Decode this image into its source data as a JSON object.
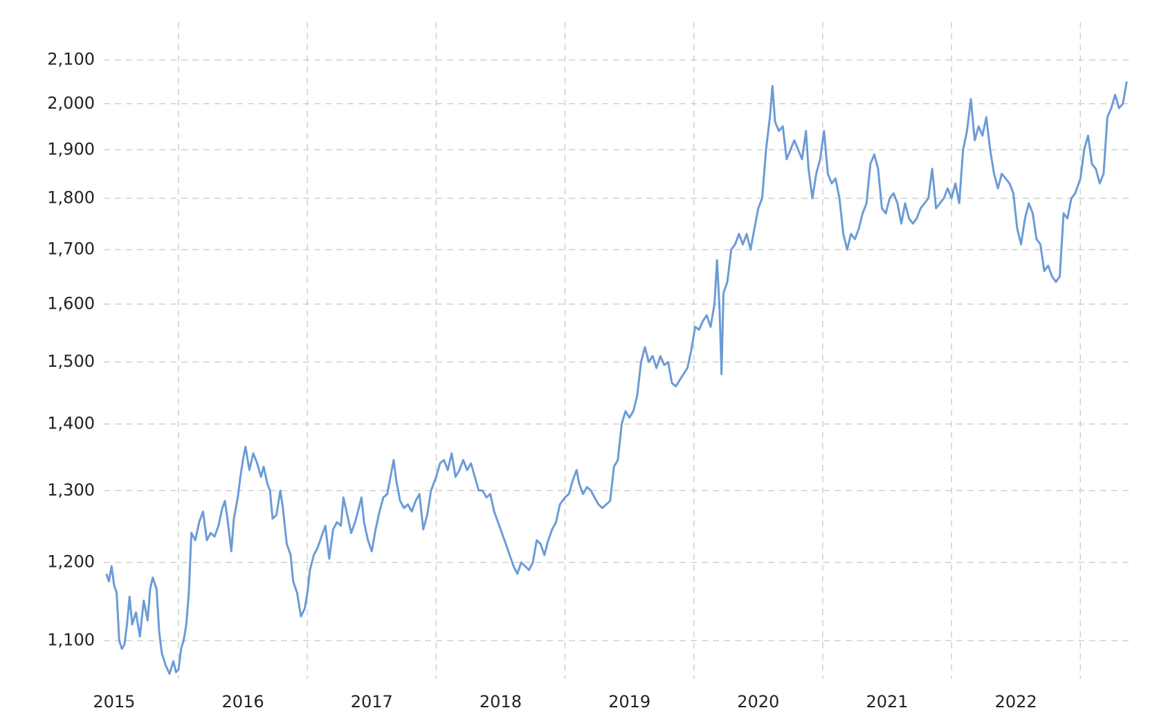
{
  "chart_data": {
    "type": "line",
    "log_y": true,
    "grid": true,
    "color": "#6b9bd6",
    "xlim": [
      2015.42,
      2023.38
    ],
    "xticks": [
      {
        "value": 2015.5,
        "label": "2015"
      },
      {
        "value": 2016.5,
        "label": "2016"
      },
      {
        "value": 2017.5,
        "label": "2017"
      },
      {
        "value": 2018.5,
        "label": "2018"
      },
      {
        "value": 2019.5,
        "label": "2019"
      },
      {
        "value": 2020.5,
        "label": "2020"
      },
      {
        "value": 2021.5,
        "label": "2021"
      },
      {
        "value": 2022.5,
        "label": "2022"
      }
    ],
    "xgrid": [
      2016,
      2017,
      2018,
      2019,
      2020,
      2021,
      2022,
      2023
    ],
    "ylim": [
      1054,
      2190
    ],
    "yticks": [
      {
        "value": 1100,
        "label": "1,100"
      },
      {
        "value": 1200,
        "label": "1,200"
      },
      {
        "value": 1300,
        "label": "1,300"
      },
      {
        "value": 1400,
        "label": "1,400"
      },
      {
        "value": 1500,
        "label": "1,500"
      },
      {
        "value": 1600,
        "label": "1,600"
      },
      {
        "value": 1700,
        "label": "1,700"
      },
      {
        "value": 1800,
        "label": "1,800"
      },
      {
        "value": 1900,
        "label": "1,900"
      },
      {
        "value": 2000,
        "label": "2,000"
      },
      {
        "value": 2100,
        "label": "2,100"
      }
    ],
    "x": [
      2015.44,
      2015.46,
      2015.48,
      2015.5,
      2015.52,
      2015.54,
      2015.56,
      2015.58,
      2015.6,
      2015.62,
      2015.64,
      2015.67,
      2015.7,
      2015.73,
      2015.76,
      2015.78,
      2015.8,
      2015.83,
      2015.85,
      2015.87,
      2015.9,
      2015.93,
      2015.96,
      2015.98,
      2016.0,
      2016.02,
      2016.04,
      2016.06,
      2016.08,
      2016.1,
      2016.13,
      2016.16,
      2016.19,
      2016.22,
      2016.25,
      2016.28,
      2016.31,
      2016.34,
      2016.36,
      2016.38,
      2016.41,
      2016.43,
      2016.46,
      2016.48,
      2016.5,
      2016.52,
      2016.55,
      2016.58,
      2016.61,
      2016.64,
      2016.66,
      2016.69,
      2016.71,
      2016.73,
      2016.76,
      2016.79,
      2016.81,
      2016.84,
      2016.87,
      2016.89,
      2016.92,
      2016.95,
      2016.98,
      2017.0,
      2017.02,
      2017.05,
      2017.08,
      2017.11,
      2017.14,
      2017.17,
      2017.2,
      2017.23,
      2017.26,
      2017.28,
      2017.31,
      2017.34,
      2017.37,
      2017.4,
      2017.42,
      2017.44,
      2017.47,
      2017.5,
      2017.53,
      2017.56,
      2017.59,
      2017.62,
      2017.65,
      2017.67,
      2017.69,
      2017.72,
      2017.75,
      2017.78,
      2017.81,
      2017.84,
      2017.87,
      2017.9,
      2017.93,
      2017.96,
      2018.0,
      2018.03,
      2018.06,
      2018.09,
      2018.12,
      2018.15,
      2018.18,
      2018.21,
      2018.24,
      2018.27,
      2018.3,
      2018.33,
      2018.36,
      2018.39,
      2018.42,
      2018.45,
      2018.48,
      2018.51,
      2018.54,
      2018.57,
      2018.6,
      2018.63,
      2018.66,
      2018.69,
      2018.72,
      2018.75,
      2018.78,
      2018.81,
      2018.84,
      2018.87,
      2018.9,
      2018.93,
      2018.96,
      2019.0,
      2019.03,
      2019.06,
      2019.09,
      2019.11,
      2019.14,
      2019.17,
      2019.2,
      2019.23,
      2019.26,
      2019.29,
      2019.32,
      2019.35,
      2019.38,
      2019.41,
      2019.44,
      2019.47,
      2019.5,
      2019.53,
      2019.56,
      2019.59,
      2019.62,
      2019.65,
      2019.68,
      2019.71,
      2019.74,
      2019.77,
      2019.8,
      2019.83,
      2019.86,
      2019.89,
      2019.92,
      2019.95,
      2019.98,
      2020.01,
      2020.04,
      2020.07,
      2020.1,
      2020.13,
      2020.16,
      2020.18,
      2020.2,
      2020.215,
      2020.23,
      2020.26,
      2020.29,
      2020.32,
      2020.35,
      2020.38,
      2020.41,
      2020.44,
      2020.47,
      2020.5,
      2020.53,
      2020.56,
      2020.59,
      2020.61,
      2020.63,
      2020.66,
      2020.69,
      2020.72,
      2020.75,
      2020.78,
      2020.81,
      2020.84,
      2020.87,
      2020.89,
      2020.92,
      2020.95,
      2020.98,
      2021.01,
      2021.04,
      2021.07,
      2021.1,
      2021.13,
      2021.16,
      2021.19,
      2021.22,
      2021.25,
      2021.28,
      2021.31,
      2021.34,
      2021.37,
      2021.4,
      2021.43,
      2021.46,
      2021.49,
      2021.52,
      2021.55,
      2021.58,
      2021.61,
      2021.64,
      2021.67,
      2021.7,
      2021.73,
      2021.76,
      2021.79,
      2021.82,
      2021.85,
      2021.88,
      2021.91,
      2021.94,
      2021.97,
      2022.0,
      2022.03,
      2022.06,
      2022.09,
      2022.12,
      2022.15,
      2022.18,
      2022.21,
      2022.24,
      2022.27,
      2022.3,
      2022.33,
      2022.36,
      2022.39,
      2022.42,
      2022.45,
      2022.48,
      2022.51,
      2022.54,
      2022.57,
      2022.6,
      2022.63,
      2022.66,
      2022.69,
      2022.72,
      2022.75,
      2022.78,
      2022.81,
      2022.84,
      2022.87,
      2022.9,
      2022.93,
      2022.96,
      2023.0,
      2023.03,
      2023.06,
      2023.09,
      2023.12,
      2023.15,
      2023.18,
      2023.21,
      2023.24,
      2023.27,
      2023.3,
      2023.33,
      2023.36
    ],
    "values": [
      1185,
      1175,
      1195,
      1170,
      1160,
      1100,
      1090,
      1095,
      1120,
      1155,
      1120,
      1135,
      1105,
      1150,
      1125,
      1165,
      1180,
      1165,
      1110,
      1085,
      1070,
      1060,
      1075,
      1062,
      1065,
      1090,
      1100,
      1120,
      1160,
      1240,
      1230,
      1255,
      1270,
      1230,
      1240,
      1235,
      1250,
      1275,
      1285,
      1260,
      1215,
      1260,
      1290,
      1320,
      1345,
      1365,
      1330,
      1355,
      1340,
      1320,
      1335,
      1310,
      1300,
      1260,
      1265,
      1300,
      1275,
      1225,
      1210,
      1175,
      1160,
      1130,
      1140,
      1160,
      1190,
      1210,
      1220,
      1235,
      1250,
      1205,
      1245,
      1255,
      1250,
      1290,
      1265,
      1240,
      1255,
      1275,
      1290,
      1255,
      1230,
      1215,
      1245,
      1270,
      1290,
      1295,
      1325,
      1345,
      1315,
      1285,
      1275,
      1280,
      1270,
      1285,
      1295,
      1245,
      1265,
      1300,
      1320,
      1340,
      1345,
      1330,
      1355,
      1320,
      1330,
      1345,
      1330,
      1340,
      1320,
      1300,
      1300,
      1290,
      1295,
      1270,
      1255,
      1240,
      1225,
      1210,
      1195,
      1185,
      1200,
      1195,
      1190,
      1200,
      1230,
      1225,
      1210,
      1230,
      1245,
      1255,
      1280,
      1290,
      1295,
      1315,
      1330,
      1310,
      1295,
      1305,
      1300,
      1290,
      1280,
      1275,
      1280,
      1285,
      1335,
      1345,
      1400,
      1420,
      1410,
      1420,
      1445,
      1500,
      1525,
      1500,
      1510,
      1490,
      1510,
      1495,
      1500,
      1465,
      1460,
      1470,
      1480,
      1490,
      1520,
      1560,
      1555,
      1570,
      1580,
      1560,
      1600,
      1680,
      1590,
      1480,
      1620,
      1640,
      1700,
      1710,
      1730,
      1710,
      1730,
      1700,
      1740,
      1780,
      1800,
      1900,
      1970,
      2040,
      1960,
      1940,
      1950,
      1880,
      1900,
      1920,
      1900,
      1880,
      1940,
      1860,
      1800,
      1850,
      1880,
      1940,
      1850,
      1830,
      1840,
      1800,
      1730,
      1700,
      1730,
      1720,
      1740,
      1770,
      1790,
      1870,
      1890,
      1860,
      1780,
      1770,
      1800,
      1810,
      1790,
      1750,
      1790,
      1760,
      1750,
      1760,
      1780,
      1790,
      1800,
      1860,
      1780,
      1790,
      1800,
      1820,
      1800,
      1830,
      1790,
      1900,
      1940,
      2010,
      1920,
      1950,
      1930,
      1970,
      1900,
      1850,
      1820,
      1850,
      1840,
      1830,
      1810,
      1740,
      1710,
      1760,
      1790,
      1770,
      1720,
      1710,
      1660,
      1670,
      1650,
      1640,
      1650,
      1770,
      1760,
      1800,
      1810,
      1840,
      1900,
      1930,
      1870,
      1860,
      1830,
      1850,
      1970,
      1990,
      2020,
      1990,
      2000,
      2050
    ]
  }
}
